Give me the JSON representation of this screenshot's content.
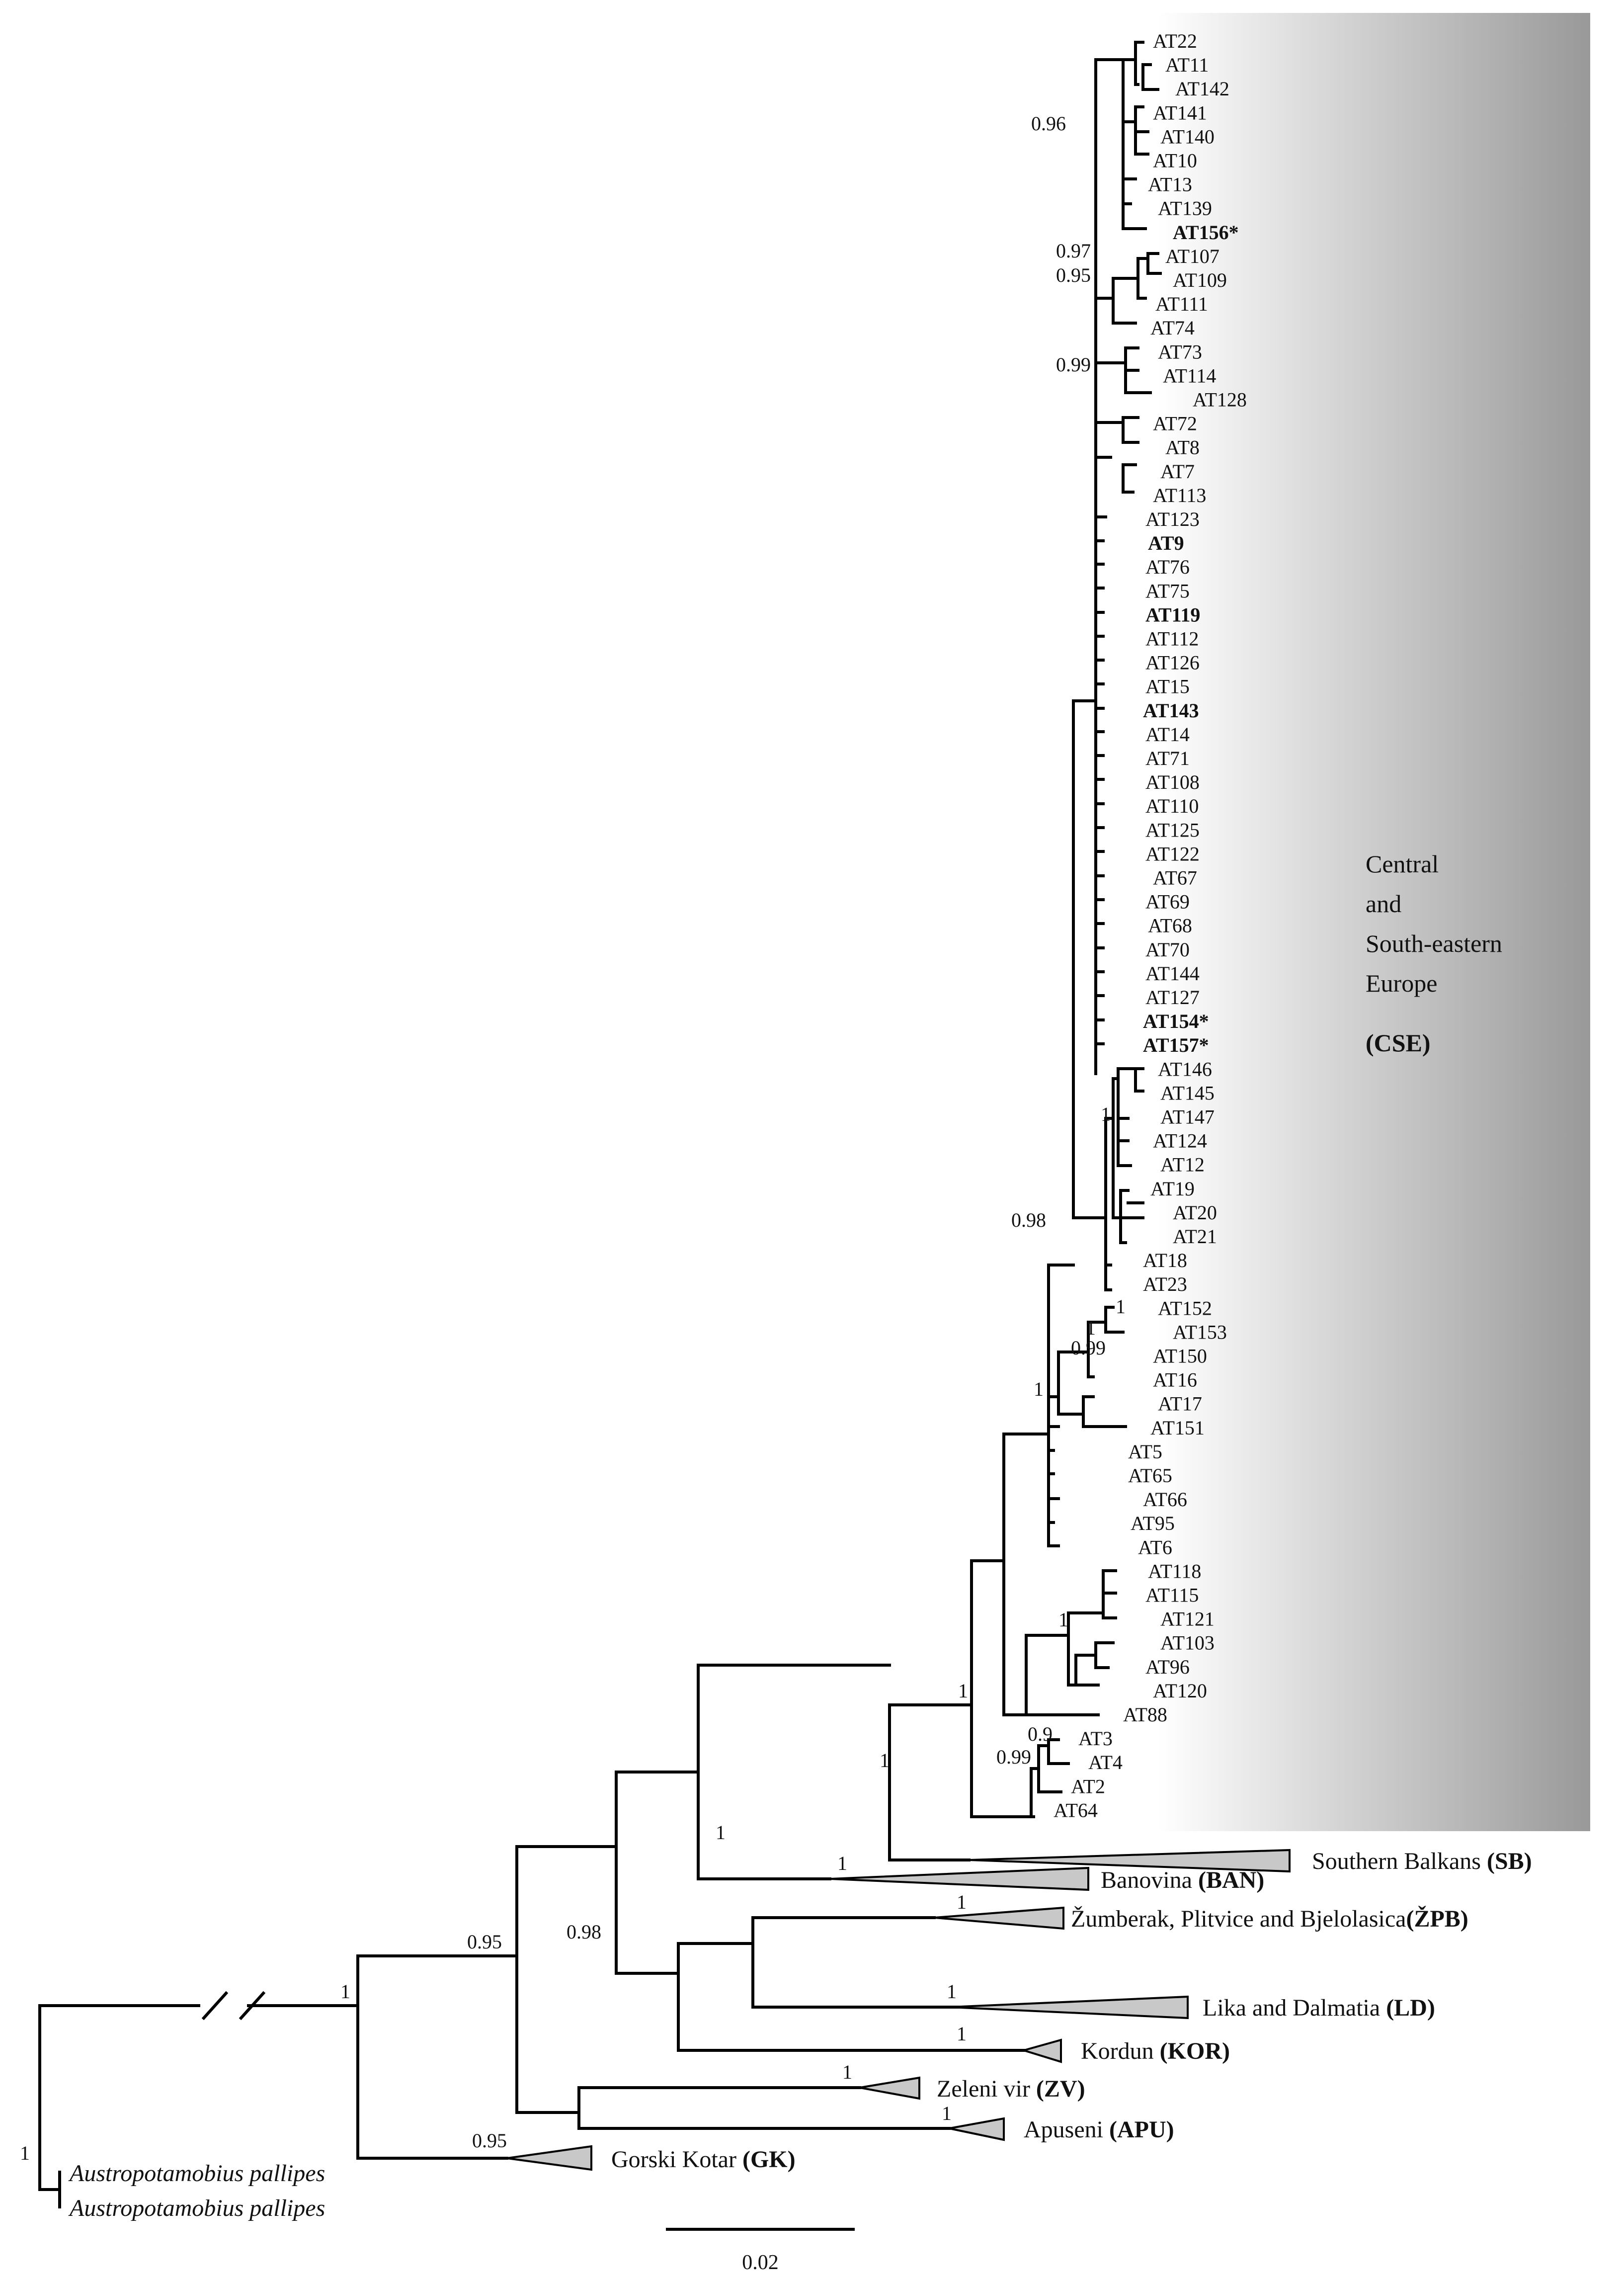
{
  "figure": {
    "leaves_cse": [
      {
        "label": "AT22",
        "bold": false
      },
      {
        "label": "AT11",
        "bold": false
      },
      {
        "label": "AT142",
        "bold": false
      },
      {
        "label": "AT141",
        "bold": false
      },
      {
        "label": "AT140",
        "bold": false
      },
      {
        "label": "AT10",
        "bold": false
      },
      {
        "label": "AT13",
        "bold": false
      },
      {
        "label": "AT139",
        "bold": false
      },
      {
        "label": "AT156*",
        "bold": true
      },
      {
        "label": "AT107",
        "bold": false
      },
      {
        "label": "AT109",
        "bold": false
      },
      {
        "label": "AT111",
        "bold": false
      },
      {
        "label": "AT74",
        "bold": false
      },
      {
        "label": "AT73",
        "bold": false
      },
      {
        "label": "AT114",
        "bold": false
      },
      {
        "label": "AT128",
        "bold": false
      },
      {
        "label": "AT72",
        "bold": false
      },
      {
        "label": "AT8",
        "bold": false
      },
      {
        "label": "AT7",
        "bold": false
      },
      {
        "label": "AT113",
        "bold": false
      },
      {
        "label": "AT123",
        "bold": false
      },
      {
        "label": "AT9",
        "bold": true
      },
      {
        "label": "AT76",
        "bold": false
      },
      {
        "label": "AT75",
        "bold": false
      },
      {
        "label": "AT119",
        "bold": true
      },
      {
        "label": "AT112",
        "bold": false
      },
      {
        "label": "AT126",
        "bold": false
      },
      {
        "label": "AT15",
        "bold": false
      },
      {
        "label": "AT143",
        "bold": true
      },
      {
        "label": "AT14",
        "bold": false
      },
      {
        "label": "AT71",
        "bold": false
      },
      {
        "label": "AT108",
        "bold": false
      },
      {
        "label": "AT110",
        "bold": false
      },
      {
        "label": "AT125",
        "bold": false
      },
      {
        "label": "AT122",
        "bold": false
      },
      {
        "label": "AT67",
        "bold": false
      },
      {
        "label": "AT69",
        "bold": false
      },
      {
        "label": "AT68",
        "bold": false
      },
      {
        "label": "AT70",
        "bold": false
      },
      {
        "label": "AT144",
        "bold": false
      },
      {
        "label": "AT127",
        "bold": false
      },
      {
        "label": "AT154*",
        "bold": true
      },
      {
        "label": "AT157*",
        "bold": true
      },
      {
        "label": "AT146",
        "bold": false
      },
      {
        "label": "AT145",
        "bold": false
      },
      {
        "label": "AT147",
        "bold": false
      },
      {
        "label": "AT124",
        "bold": false
      },
      {
        "label": "AT12",
        "bold": false
      },
      {
        "label": "AT19",
        "bold": false
      },
      {
        "label": "AT20",
        "bold": false
      },
      {
        "label": "AT21",
        "bold": false
      },
      {
        "label": "AT18",
        "bold": false
      },
      {
        "label": "AT23",
        "bold": false
      },
      {
        "label": "AT152",
        "bold": false
      },
      {
        "label": "AT153",
        "bold": false
      },
      {
        "label": "AT150",
        "bold": false
      },
      {
        "label": "AT16",
        "bold": false
      },
      {
        "label": "AT17",
        "bold": false
      },
      {
        "label": "AT151",
        "bold": false
      },
      {
        "label": "AT5",
        "bold": false
      },
      {
        "label": "AT65",
        "bold": false
      },
      {
        "label": "AT66",
        "bold": false
      },
      {
        "label": "AT95",
        "bold": false
      },
      {
        "label": "AT6",
        "bold": false
      },
      {
        "label": "AT118",
        "bold": false
      },
      {
        "label": "AT115",
        "bold": false
      },
      {
        "label": "AT121",
        "bold": false
      },
      {
        "label": "AT103",
        "bold": false
      },
      {
        "label": "AT96",
        "bold": false
      },
      {
        "label": "AT120",
        "bold": false
      },
      {
        "label": "AT88",
        "bold": false
      },
      {
        "label": "AT3",
        "bold": false
      },
      {
        "label": "AT4",
        "bold": false
      },
      {
        "label": "AT2",
        "bold": false
      },
      {
        "label": "AT64",
        "bold": false
      }
    ],
    "cse_region": {
      "line1": "Central",
      "line2": "and",
      "line3": "South-eastern",
      "line4": "Europe",
      "code": "(CSE)"
    },
    "collapsed_clades": [
      {
        "name": "Southern Balkans",
        "code": "(SB)",
        "support": ""
      },
      {
        "name": "Banovina",
        "code": "(BAN)",
        "support": "1"
      },
      {
        "name": "Žumberak, Plitvice and Bjelolasica",
        "code": "(ŽPB)",
        "support": "1"
      },
      {
        "name": "Lika and Dalmatia",
        "code": "(LD)",
        "support": "1"
      },
      {
        "name": "Kordun",
        "code": "(KOR)",
        "support": "1"
      },
      {
        "name": "Zeleni vir",
        "code": "(ZV)",
        "support": "1"
      },
      {
        "name": "Apuseni",
        "code": "(APU)",
        "support": "1"
      },
      {
        "name": "Gorski Kotar",
        "code": "(GK)",
        "support": "0.95"
      }
    ],
    "outgroup": [
      "Austropotamobius pallipes",
      "Austropotamobius pallipes"
    ],
    "supports": {
      "s096": "0.96",
      "s097": "0.97",
      "s095a": "0.95",
      "s099a": "0.99",
      "s098a": "0.98",
      "s1a": "1",
      "s1b": "1",
      "s099b": "0.99",
      "s1c": "1",
      "s1d": "1",
      "s1e": "1",
      "s09": "0.9",
      "s099c": "0.99",
      "s1f": "1",
      "s1g": "1",
      "s098b": "0.98",
      "s095b": "0.95",
      "s1h": "1",
      "s1root": "1"
    },
    "scale_bar": {
      "label": "0.02"
    },
    "colors": {
      "shade_dark": "#999999",
      "shade_light": "#ffffff",
      "triangle_fill": "#c8c8c8"
    }
  }
}
